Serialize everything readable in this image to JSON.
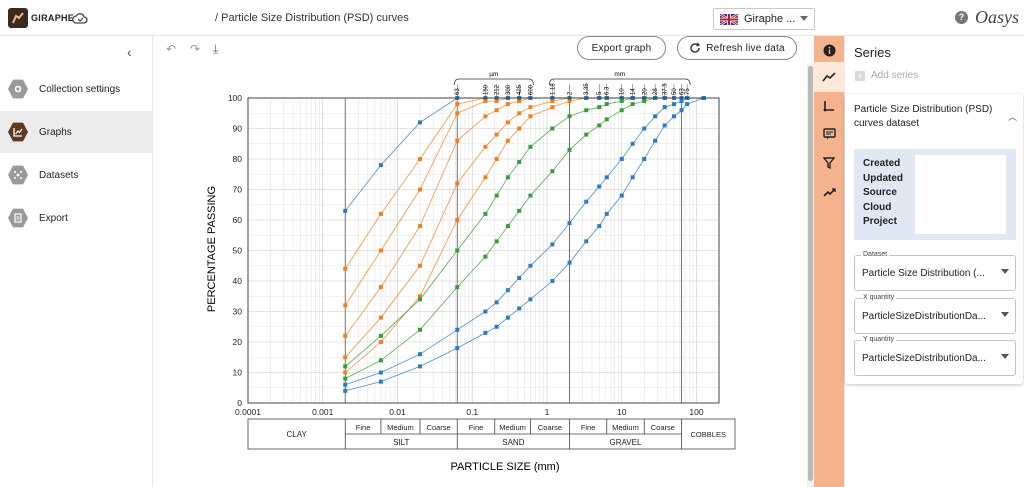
{
  "app": {
    "brand": "GIRAPHE",
    "breadcrumb": "/ Particle Size Distribution (PSD) curves",
    "oasys_logo": "Oasys"
  },
  "language": {
    "selected": "Giraphe ..."
  },
  "icons": {
    "cloud": "cloud-icon",
    "help": "help-icon",
    "undo": "undo-icon",
    "redo": "redo-icon",
    "download": "download-icon",
    "refresh": "refresh-icon"
  },
  "nav": {
    "items": [
      {
        "label": "Collection settings",
        "icon": "settings-icon"
      },
      {
        "label": "Graphs",
        "icon": "graph-icon"
      },
      {
        "label": "Datasets",
        "icon": "dataset-icon"
      },
      {
        "label": "Export",
        "icon": "export-icon"
      }
    ]
  },
  "toolbar": {
    "export_label": "Export graph",
    "refresh_label": "Refresh live data"
  },
  "panel": {
    "title": "Series",
    "add_series": "Add series",
    "series_name": "Particle Size Distribution (PSD) curves dataset",
    "meta_keys": [
      "Created",
      "Updated",
      "Source",
      "Cloud",
      "Project"
    ],
    "dataset": {
      "label": "Dataset",
      "value": "Particle Size Distribution (..."
    },
    "x_quantity": {
      "label": "X quantity",
      "value": "ParticleSizeDistributionDa..."
    },
    "y_quantity": {
      "label": "Y quantity",
      "value": "ParticleSizeDistributionDa..."
    }
  },
  "colors": {
    "accent": "#f4b38c",
    "nav_active": "#5c3a24",
    "series_orange": "#f47f20",
    "series_green": "#3a9b3a",
    "series_blue": "#2e7bc4"
  },
  "chart_data": {
    "type": "line",
    "xscale": "log",
    "xlabel": "PARTICLE SIZE (mm)",
    "ylabel": "PERCENTAGE PASSING",
    "xlim": [
      0.0001,
      200
    ],
    "ylim": [
      0,
      100
    ],
    "x_ticks": [
      "0.0001",
      "0.001",
      "0.01",
      "0.1",
      "1",
      "10",
      "100"
    ],
    "y_ticks": [
      "0",
      "10",
      "20",
      "30",
      "40",
      "50",
      "60",
      "70",
      "80",
      "90",
      "100"
    ],
    "sieve_labels_um": [
      "63",
      "150",
      "212",
      "300",
      "425",
      "600"
    ],
    "sieve_labels_mm": [
      "1.18",
      "2",
      "3.35",
      "5",
      "6.3",
      "10",
      "14",
      "20",
      "28",
      "37.5",
      "50",
      "63",
      "75"
    ],
    "sieve_unit_um": "µm",
    "sieve_unit_mm": "mm",
    "classification": {
      "clay": "CLAY",
      "silt": "SILT",
      "sand": "SAND",
      "gravel": "GRAVEL",
      "cobbles": "COBBLES",
      "fine": "Fine",
      "medium": "Medium",
      "coarse": "Coarse"
    },
    "x": [
      0.002,
      0.006,
      0.02,
      0.063,
      0.15,
      0.212,
      0.3,
      0.425,
      0.6,
      1.18,
      2,
      3.35,
      5,
      6.3,
      10,
      14,
      20,
      28,
      37.5,
      50,
      63,
      75,
      125
    ],
    "series": [
      {
        "color": "#f47f20",
        "values": [
          44,
          62,
          80,
          98,
          100,
          100,
          100,
          100,
          100,
          100,
          100,
          100,
          100,
          100,
          100,
          100,
          100,
          100,
          100,
          100,
          100,
          100,
          100
        ]
      },
      {
        "color": "#f47f20",
        "values": [
          32,
          50,
          70,
          95,
          99,
          99,
          100,
          100,
          100,
          100,
          100,
          100,
          100,
          100,
          100,
          100,
          100,
          100,
          100,
          100,
          100,
          100,
          100
        ]
      },
      {
        "color": "#f47f20",
        "values": [
          22,
          38,
          58,
          86,
          94,
          96,
          98,
          99,
          100,
          100,
          100,
          100,
          100,
          100,
          100,
          100,
          100,
          100,
          100,
          100,
          100,
          100,
          100
        ]
      },
      {
        "color": "#f47f20",
        "values": [
          15,
          28,
          45,
          72,
          84,
          88,
          92,
          95,
          97,
          99,
          100,
          100,
          100,
          100,
          100,
          100,
          100,
          100,
          100,
          100,
          100,
          100,
          100
        ]
      },
      {
        "color": "#f47f20",
        "values": [
          10,
          20,
          35,
          60,
          74,
          80,
          86,
          90,
          94,
          97,
          99,
          100,
          100,
          100,
          100,
          100,
          100,
          100,
          100,
          100,
          100,
          100,
          100
        ]
      },
      {
        "color": "#3a9b3a",
        "values": [
          12,
          22,
          34,
          50,
          62,
          68,
          74,
          79,
          84,
          90,
          94,
          96,
          97,
          98,
          99,
          100,
          100,
          100,
          100,
          100,
          100,
          100,
          100
        ]
      },
      {
        "color": "#3a9b3a",
        "values": [
          8,
          14,
          24,
          38,
          48,
          53,
          58,
          63,
          68,
          76,
          83,
          88,
          91,
          93,
          96,
          98,
          99,
          100,
          100,
          100,
          100,
          100,
          100
        ]
      },
      {
        "color": "#2e7bc4",
        "values": [
          6,
          10,
          16,
          24,
          30,
          33,
          37,
          41,
          45,
          52,
          59,
          66,
          71,
          74,
          80,
          85,
          90,
          94,
          97,
          98,
          99,
          100,
          100
        ]
      },
      {
        "color": "#2e7bc4",
        "values": [
          4,
          7,
          12,
          18,
          23,
          25,
          28,
          31,
          34,
          40,
          46,
          53,
          58,
          62,
          68,
          74,
          80,
          86,
          91,
          94,
          96,
          98,
          100
        ]
      },
      {
        "color": "#2e7bc4",
        "values": [
          63,
          78,
          92,
          100,
          100,
          100,
          100,
          100,
          100,
          100,
          100,
          100,
          100,
          100,
          100,
          100,
          100,
          100,
          100,
          100,
          100,
          100,
          100
        ]
      }
    ]
  }
}
